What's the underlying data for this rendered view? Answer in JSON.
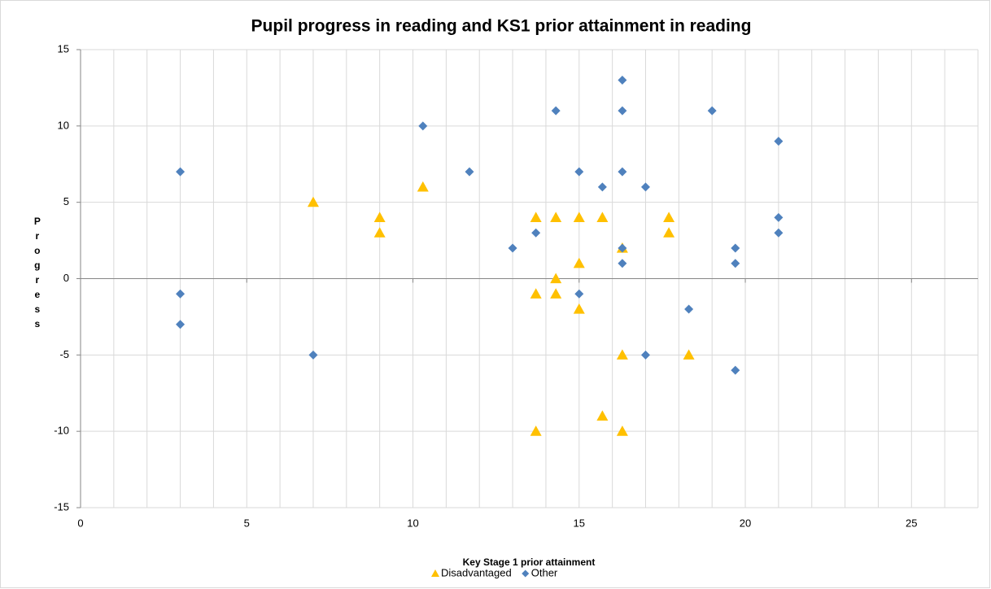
{
  "chart_data": {
    "type": "scatter",
    "title": "Pupil progress in reading and KS1 prior attainment in reading",
    "x_label": "Key Stage 1 prior attainment",
    "y_label": "Progress",
    "xlim": [
      0,
      27
    ],
    "xticks": [
      0,
      5,
      10,
      15,
      20,
      25
    ],
    "x_minor_grid_step": 1,
    "ylim": [
      -15,
      15
    ],
    "yticks": [
      -15,
      -10,
      -5,
      0,
      5,
      10,
      15
    ],
    "grid": true,
    "legend": "bottom",
    "series": [
      {
        "name": "Disadvantaged",
        "color": "#ffc000",
        "marker": "triangle",
        "x": [
          7,
          9,
          9,
          10.3,
          13.7,
          13.7,
          13.7,
          14.3,
          14.3,
          14.3,
          15,
          15,
          15,
          15.7,
          15.7,
          16.3,
          16.3,
          16.3,
          17.7,
          17.7,
          18.3
        ],
        "values": [
          5,
          4,
          3,
          6,
          4,
          -1,
          -10,
          4,
          0,
          -1,
          4,
          1,
          -2,
          4,
          -9,
          2,
          -5,
          -10,
          4,
          3,
          -5
        ]
      },
      {
        "name": "Other",
        "color": "#4f81bd",
        "marker": "diamond",
        "x": [
          3,
          3,
          3,
          7,
          10.3,
          11.7,
          13,
          13.7,
          14.3,
          15,
          15,
          15.7,
          16.3,
          16.3,
          16.3,
          16.3,
          16.3,
          17,
          17,
          18.3,
          19,
          19.7,
          19.7,
          19.7,
          21,
          21,
          21
        ],
        "values": [
          7,
          -1,
          -3,
          -5,
          10,
          7,
          2,
          3,
          11,
          7,
          -1,
          6,
          13,
          11,
          7,
          2,
          1,
          6,
          -5,
          -2,
          11,
          2,
          1,
          -6,
          9,
          4,
          3
        ]
      }
    ]
  }
}
